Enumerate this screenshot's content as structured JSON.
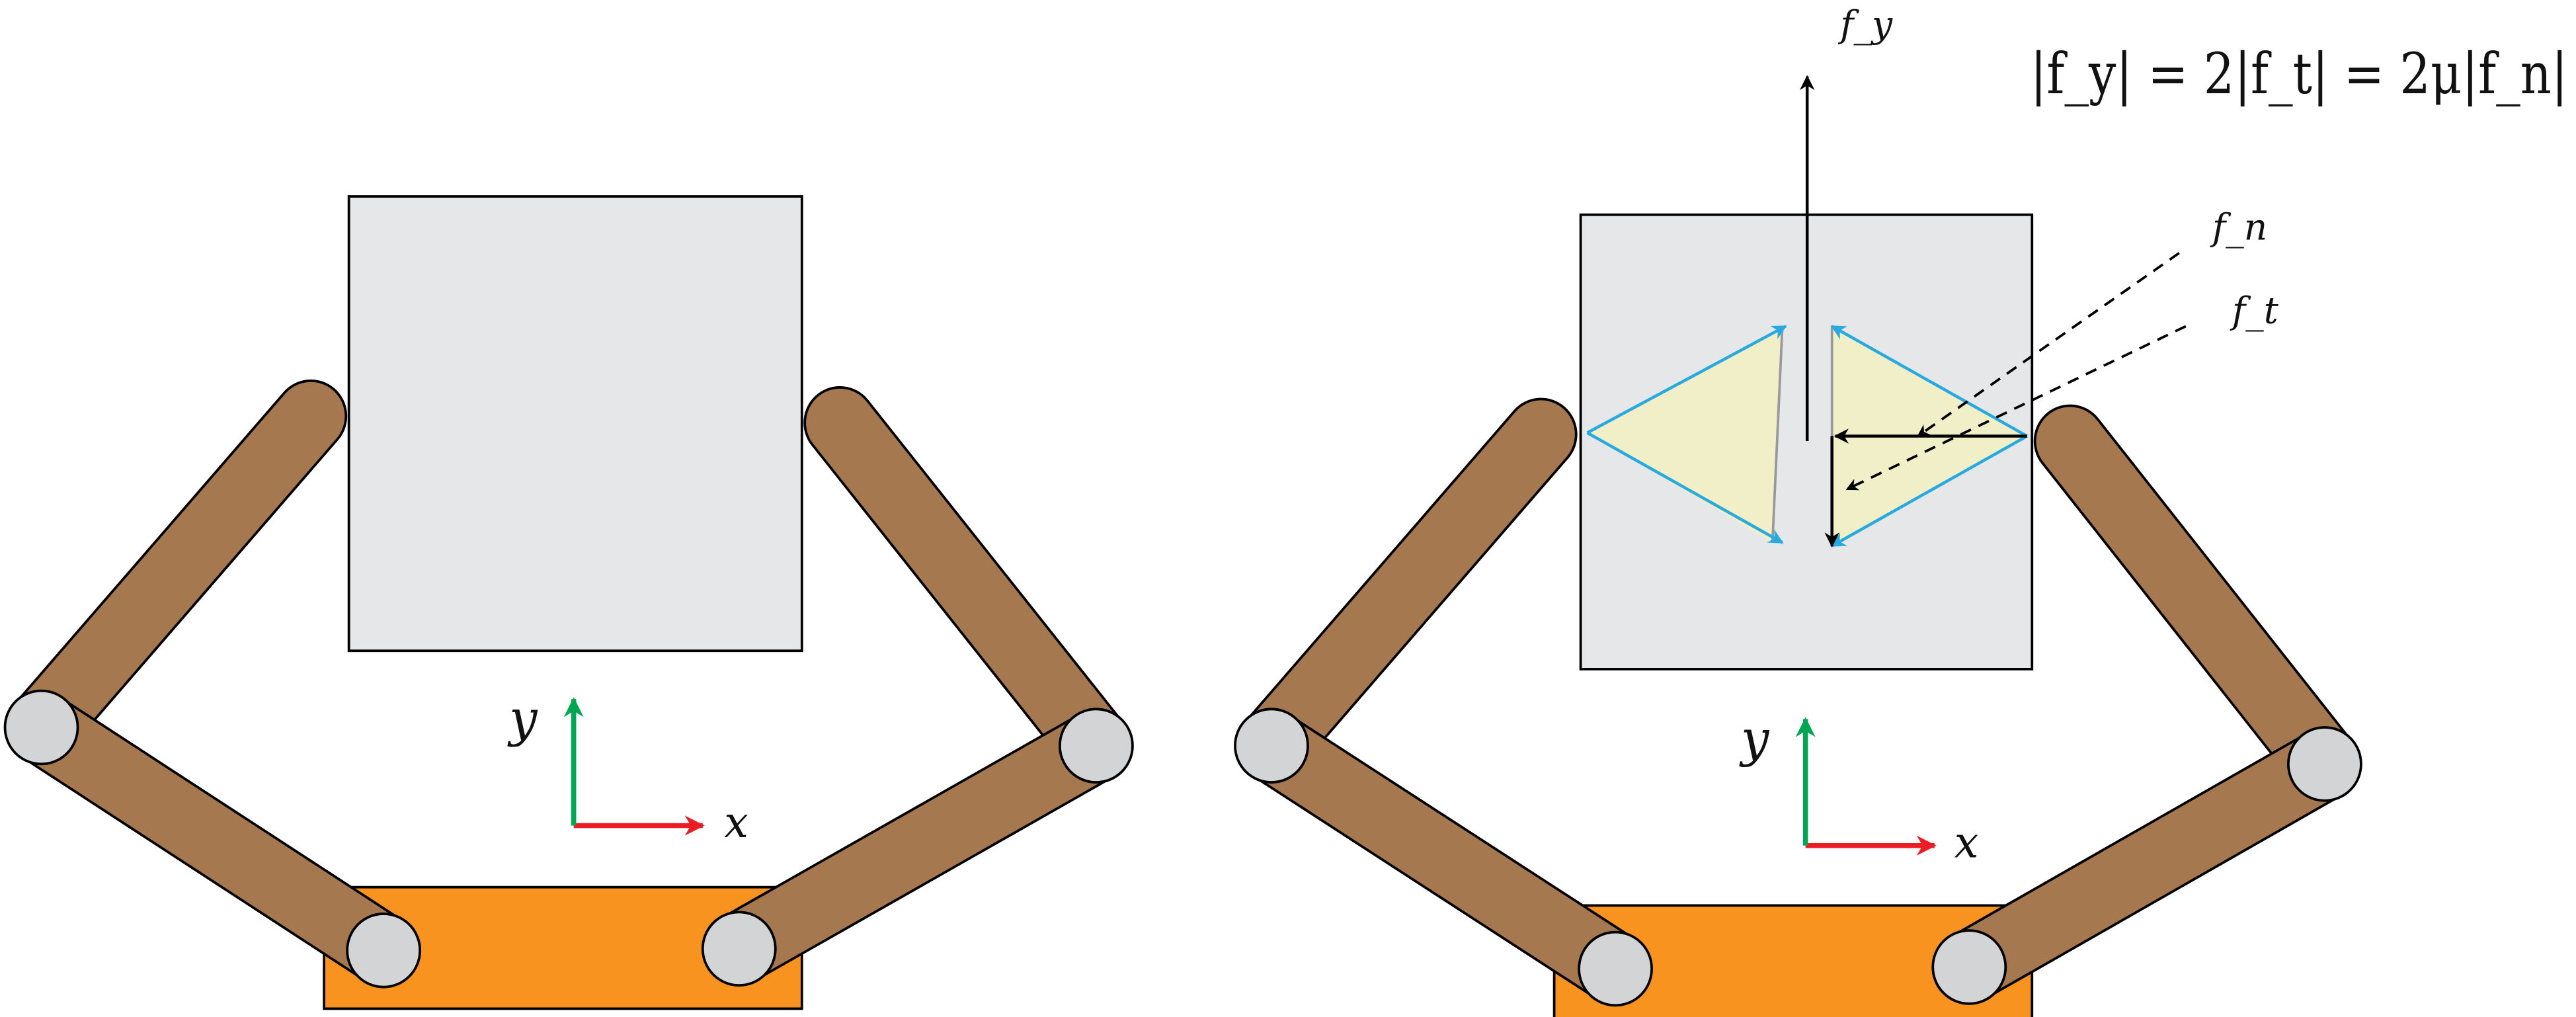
{
  "labels": {
    "left_x_axis": "x",
    "left_y_axis": "y",
    "right_x_axis": "x",
    "right_y_axis": "y",
    "force_y": "f_y",
    "force_n": "f_n",
    "force_t": "f_t",
    "equation": "|f_y| = 2|f_t| = 2μ|f_n|"
  },
  "colors": {
    "object": "#e6e7e9",
    "link": "#a6784f",
    "joint": "#d3d4d6",
    "palm": "#f7931e",
    "x_axis": "#ec1c24",
    "y_axis": "#00a651",
    "friction_cone_edge": "#28aae1",
    "friction_cone_fill": "#f1efc8",
    "outline": "#000000"
  }
}
